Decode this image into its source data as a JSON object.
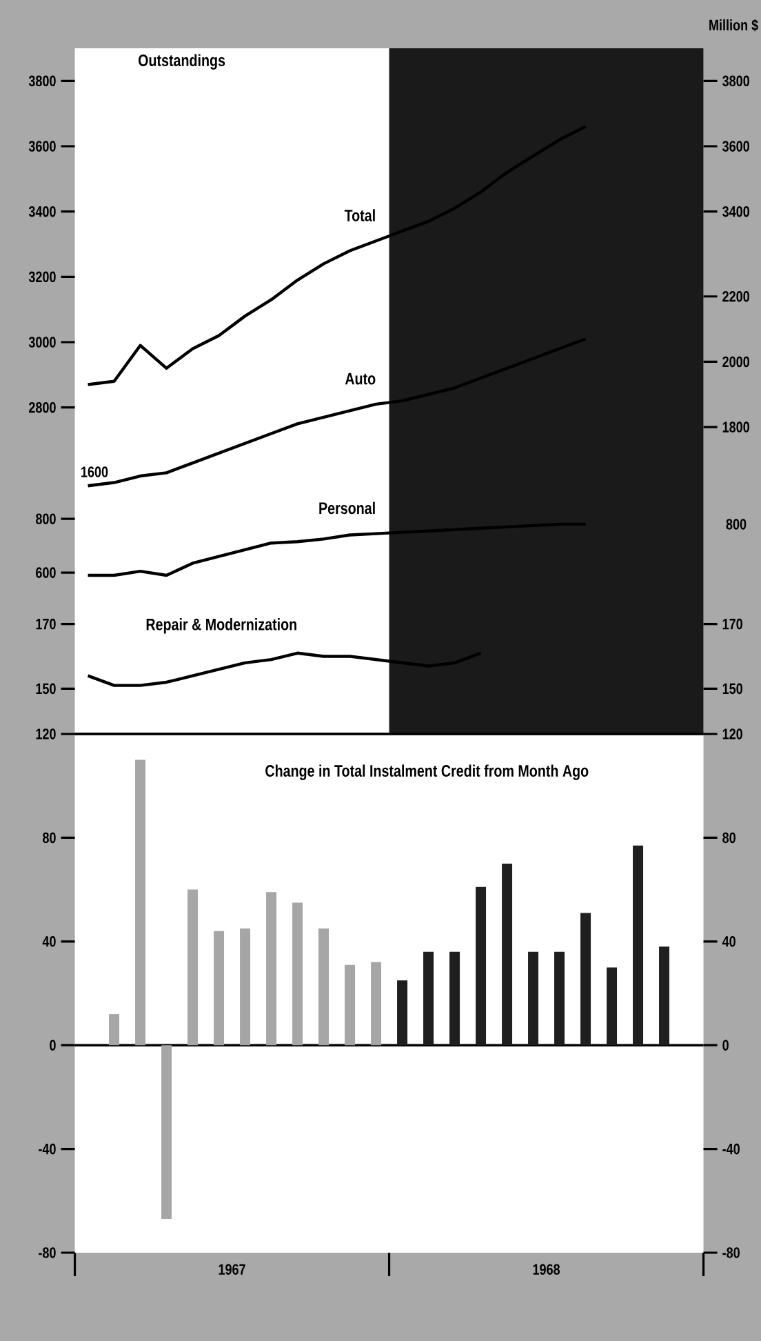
{
  "chart_data": [
    {
      "type": "line",
      "title": "Outstandings",
      "y2label": "Million $",
      "categories": [
        null,
        null,
        null,
        null,
        null,
        null,
        null,
        null,
        null,
        null,
        null,
        null,
        null,
        null,
        null,
        null,
        null,
        null,
        null,
        null,
        null,
        null,
        null,
        null
      ],
      "series": [
        {
          "name": "Total",
          "color": "#000000",
          "values": [
            2870,
            2880,
            2990,
            2920,
            2980,
            3020,
            3080,
            3130,
            3190,
            3240,
            3280,
            3310,
            3340,
            3370,
            3410,
            3460,
            3520,
            3570,
            3620,
            3660,
            null,
            null,
            null,
            null
          ]
        },
        {
          "name": "Auto",
          "color": "#000000",
          "axis": "y2",
          "values": [
            1620,
            1630,
            1650,
            1660,
            1690,
            1720,
            1750,
            1780,
            1810,
            1830,
            1850,
            1870,
            1880,
            1900,
            1920,
            1950,
            1980,
            2010,
            2040,
            2070,
            null,
            null,
            null,
            null
          ]
        }
      ],
      "ylim": [
        1800,
        3900
      ],
      "yticks": [
        2800,
        3000,
        3200,
        3400,
        3600,
        3800
      ],
      "y2lim": [
        860,
        2960
      ],
      "y2ticks": [
        1800,
        2000,
        2200
      ],
      "y3lim": [
        1800,
        3900
      ],
      "y3ticks": [
        3400,
        3600,
        3800
      ],
      "annotations": [
        "1600"
      ],
      "tick_labels": [
        "y",
        "y2",
        "y3"
      ]
    },
    {
      "type": "line",
      "categories": [
        null,
        null,
        null,
        null,
        null,
        null,
        null,
        null,
        null,
        null,
        null,
        null,
        null,
        null,
        null,
        null,
        null,
        null,
        null,
        null,
        null,
        null,
        null,
        null
      ],
      "series": [
        {
          "name": "Personal",
          "color": "#000000",
          "values": [
            590,
            590,
            605,
            590,
            635,
            660,
            685,
            710,
            715,
            725,
            740,
            745,
            750,
            755,
            760,
            765,
            770,
            775,
            780,
            780,
            null,
            null,
            null,
            null
          ]
        }
      ],
      "ylim": [
        0,
        2550
      ],
      "yticks": [
        600,
        800
      ],
      "annotations": [
        "800"
      ],
      "tick_labels": [
        "y"
      ]
    },
    {
      "type": "line",
      "categories": [
        null,
        null,
        null,
        null,
        null,
        null,
        null,
        null,
        null,
        null,
        null,
        null,
        null,
        null,
        null,
        null,
        null,
        null,
        null,
        null,
        null,
        null,
        null,
        null
      ],
      "series": [
        {
          "name": "Repair & Modernization",
          "color": "#000000",
          "values": [
            154,
            151,
            151,
            152,
            154,
            156,
            158,
            159,
            161,
            160,
            160,
            159,
            158,
            157,
            158,
            161,
            null,
            null,
            null,
            null,
            null,
            null,
            null,
            null
          ]
        }
      ],
      "ylim": [
        136,
        348
      ],
      "yticks": [
        150,
        170
      ],
      "y2lim": [
        136,
        348
      ],
      "y2ticks": [
        150,
        170
      ],
      "tick_labels": [
        "y",
        "y2"
      ]
    },
    {
      "type": "bar",
      "title": "Change in Total Instalment Credit from Month Ago",
      "categories": [
        null,
        null,
        null,
        null,
        null,
        null,
        null,
        null,
        null,
        null,
        null,
        null,
        null,
        null,
        null,
        null,
        null,
        null,
        null,
        null,
        null,
        null,
        null,
        null
      ],
      "values": [
        null,
        12,
        110,
        -67,
        60,
        44,
        45,
        59,
        55,
        45,
        31,
        32,
        25,
        36,
        36,
        61,
        70,
        36,
        36,
        51,
        30,
        77,
        38,
        null
      ],
      "colors": [
        null,
        "#a6a6a6",
        "#a6a6a6",
        "#a6a6a6",
        "#a6a6a6",
        "#a6a6a6",
        "#a6a6a6",
        "#a6a6a6",
        "#a6a6a6",
        "#a6a6a6",
        "#a6a6a6",
        "#a6a6a6",
        "#1f1f1f",
        "#1f1f1f",
        "#1f1f1f",
        "#1f1f1f",
        "#1f1f1f",
        "#1f1f1f",
        "#1f1f1f",
        "#1f1f1f",
        "#1f1f1f",
        "#1f1f1f",
        "#1f1f1f",
        null
      ],
      "annotations": [
        "1967",
        "1968"
      ],
      "ylim": [
        -80,
        120
      ],
      "yticks": [
        -80,
        -40,
        0,
        40,
        80,
        120
      ],
      "y2lim": [
        -80,
        120
      ],
      "y2ticks": [
        -80,
        -40,
        0,
        40,
        80,
        120
      ],
      "ref_lines": [
        {
          "axis": "y",
          "value": 0
        }
      ]
    }
  ]
}
